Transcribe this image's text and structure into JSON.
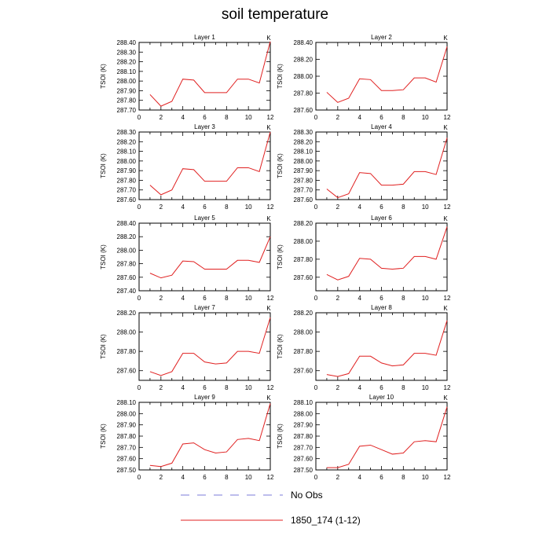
{
  "figure": {
    "title": "soil temperature",
    "ylabel": "TSOI  (K)",
    "units_tag": "K",
    "legend": [
      {
        "label": "No Obs",
        "style": "dashed",
        "color": "#7b7bd9"
      },
      {
        "label": "1850_174 (1-12)",
        "style": "solid",
        "color": "#e02020"
      }
    ],
    "line_color": "#e02020"
  },
  "chart_data": [
    {
      "type": "line",
      "title": "Layer 1",
      "xlabel": "",
      "ylabel": "TSOI  (K)",
      "xlim": [
        0,
        12
      ],
      "ylim": [
        287.7,
        288.4
      ],
      "xticks": [
        0,
        2,
        4,
        6,
        8,
        10,
        12
      ],
      "yticks": [
        "287.70",
        "287.80",
        "287.90",
        "288.00",
        "288.10",
        "288.20",
        "288.30",
        "288.40"
      ],
      "x": [
        1,
        2,
        3,
        4,
        5,
        6,
        7,
        8,
        9,
        10,
        11,
        12
      ],
      "series": [
        {
          "name": "1850_174 (1-12)",
          "values": [
            287.86,
            287.74,
            287.79,
            288.02,
            288.01,
            287.88,
            287.88,
            287.88,
            288.02,
            288.02,
            287.98,
            288.41
          ]
        }
      ]
    },
    {
      "type": "line",
      "title": "Layer 2",
      "xlabel": "",
      "ylabel": "TSOI  (K)",
      "xlim": [
        0,
        12
      ],
      "ylim": [
        287.6,
        288.4
      ],
      "xticks": [
        0,
        2,
        4,
        6,
        8,
        10,
        12
      ],
      "yticks": [
        "287.60",
        "287.80",
        "288.00",
        "288.20",
        "288.40"
      ],
      "x": [
        1,
        2,
        3,
        4,
        5,
        6,
        7,
        8,
        9,
        10,
        11,
        12
      ],
      "series": [
        {
          "name": "1850_174 (1-12)",
          "values": [
            287.81,
            287.69,
            287.74,
            287.97,
            287.96,
            287.83,
            287.83,
            287.84,
            287.98,
            287.98,
            287.93,
            288.35
          ]
        }
      ]
    },
    {
      "type": "line",
      "title": "Layer 3",
      "xlabel": "",
      "ylabel": "TSOI  (K)",
      "xlim": [
        0,
        12
      ],
      "ylim": [
        287.6,
        288.3
      ],
      "xticks": [
        0,
        2,
        4,
        6,
        8,
        10,
        12
      ],
      "yticks": [
        "287.60",
        "287.70",
        "287.80",
        "287.90",
        "288.00",
        "288.10",
        "288.20",
        "288.30"
      ],
      "x": [
        1,
        2,
        3,
        4,
        5,
        6,
        7,
        8,
        9,
        10,
        11,
        12
      ],
      "series": [
        {
          "name": "1850_174 (1-12)",
          "values": [
            287.75,
            287.65,
            287.7,
            287.92,
            287.91,
            287.79,
            287.79,
            287.79,
            287.93,
            287.93,
            287.89,
            288.3
          ]
        }
      ]
    },
    {
      "type": "line",
      "title": "Layer 4",
      "xlabel": "",
      "ylabel": "TSOI  (K)",
      "xlim": [
        0,
        12
      ],
      "ylim": [
        287.6,
        288.3
      ],
      "xticks": [
        0,
        2,
        4,
        6,
        8,
        10,
        12
      ],
      "yticks": [
        "287.60",
        "287.70",
        "287.80",
        "287.90",
        "288.00",
        "288.10",
        "288.20",
        "288.30"
      ],
      "x": [
        1,
        2,
        3,
        4,
        5,
        6,
        7,
        8,
        9,
        10,
        11,
        12
      ],
      "series": [
        {
          "name": "1850_174 (1-12)",
          "values": [
            287.71,
            287.62,
            287.66,
            287.88,
            287.87,
            287.75,
            287.75,
            287.76,
            287.89,
            287.89,
            287.86,
            288.24
          ]
        }
      ]
    },
    {
      "type": "line",
      "title": "Layer 5",
      "xlabel": "",
      "ylabel": "TSOI  (K)",
      "xlim": [
        0,
        12
      ],
      "ylim": [
        287.4,
        288.4
      ],
      "xticks": [
        0,
        2,
        4,
        6,
        8,
        10,
        12
      ],
      "yticks": [
        "287.40",
        "287.60",
        "287.80",
        "288.00",
        "288.20",
        "288.40"
      ],
      "x": [
        1,
        2,
        3,
        4,
        5,
        6,
        7,
        8,
        9,
        10,
        11,
        12
      ],
      "series": [
        {
          "name": "1850_174 (1-12)",
          "values": [
            287.66,
            287.59,
            287.63,
            287.84,
            287.83,
            287.72,
            287.72,
            287.72,
            287.85,
            287.85,
            287.82,
            288.2
          ]
        }
      ]
    },
    {
      "type": "line",
      "title": "Layer 6",
      "xlabel": "",
      "ylabel": "TSOI  (K)",
      "xlim": [
        0,
        12
      ],
      "ylim": [
        287.45,
        288.2
      ],
      "xticks": [
        0,
        2,
        4,
        6,
        8,
        10,
        12
      ],
      "yticks": [
        "287.60",
        "287.80",
        "288.00",
        "288.20"
      ],
      "x": [
        1,
        2,
        3,
        4,
        5,
        6,
        7,
        8,
        9,
        10,
        11,
        12
      ],
      "series": [
        {
          "name": "1850_174 (1-12)",
          "values": [
            287.63,
            287.57,
            287.61,
            287.81,
            287.8,
            287.7,
            287.69,
            287.7,
            287.83,
            287.83,
            287.8,
            288.16
          ]
        }
      ]
    },
    {
      "type": "line",
      "title": "Layer 7",
      "xlabel": "",
      "ylabel": "TSOI  (K)",
      "xlim": [
        0,
        12
      ],
      "ylim": [
        287.5,
        288.2
      ],
      "xticks": [
        0,
        2,
        4,
        6,
        8,
        10,
        12
      ],
      "yticks": [
        "287.60",
        "287.80",
        "288.00",
        "288.20"
      ],
      "x": [
        1,
        2,
        3,
        4,
        5,
        6,
        7,
        8,
        9,
        10,
        11,
        12
      ],
      "series": [
        {
          "name": "1850_174 (1-12)",
          "values": [
            287.59,
            287.55,
            287.59,
            287.78,
            287.78,
            287.69,
            287.67,
            287.68,
            287.8,
            287.8,
            287.78,
            288.15
          ]
        }
      ]
    },
    {
      "type": "line",
      "title": "Layer 8",
      "xlabel": "",
      "ylabel": "TSOI  (K)",
      "xlim": [
        0,
        12
      ],
      "ylim": [
        287.5,
        288.2
      ],
      "xticks": [
        0,
        2,
        4,
        6,
        8,
        10,
        12
      ],
      "yticks": [
        "287.60",
        "287.80",
        "288.00",
        "288.20"
      ],
      "x": [
        1,
        2,
        3,
        4,
        5,
        6,
        7,
        8,
        9,
        10,
        11,
        12
      ],
      "series": [
        {
          "name": "1850_174 (1-12)",
          "values": [
            287.56,
            287.54,
            287.57,
            287.75,
            287.75,
            287.68,
            287.65,
            287.66,
            287.78,
            287.78,
            287.76,
            288.12
          ]
        }
      ]
    },
    {
      "type": "line",
      "title": "Layer 9",
      "xlabel": "",
      "ylabel": "TSOI  (K)",
      "xlim": [
        0,
        12
      ],
      "ylim": [
        287.5,
        288.1
      ],
      "xticks": [
        0,
        2,
        4,
        6,
        8,
        10,
        12
      ],
      "yticks": [
        "287.50",
        "287.60",
        "287.70",
        "287.80",
        "287.90",
        "288.00",
        "288.10"
      ],
      "x": [
        1,
        2,
        3,
        4,
        5,
        6,
        7,
        8,
        9,
        10,
        11,
        12
      ],
      "series": [
        {
          "name": "1850_174 (1-12)",
          "values": [
            287.54,
            287.53,
            287.56,
            287.73,
            287.74,
            287.68,
            287.65,
            287.66,
            287.77,
            287.78,
            287.76,
            288.09
          ]
        }
      ]
    },
    {
      "type": "line",
      "title": "Layer 10",
      "xlabel": "",
      "ylabel": "TSOI  (K)",
      "xlim": [
        0,
        12
      ],
      "ylim": [
        287.5,
        288.1
      ],
      "xticks": [
        0,
        2,
        4,
        6,
        8,
        10,
        12
      ],
      "yticks": [
        "287.50",
        "287.60",
        "287.70",
        "287.80",
        "287.90",
        "288.00",
        "288.10"
      ],
      "x": [
        1,
        2,
        3,
        4,
        5,
        6,
        7,
        8,
        9,
        10,
        11,
        12
      ],
      "series": [
        {
          "name": "1850_174 (1-12)",
          "values": [
            287.52,
            287.52,
            287.55,
            287.71,
            287.72,
            287.68,
            287.64,
            287.65,
            287.75,
            287.76,
            287.75,
            288.06
          ]
        }
      ]
    }
  ]
}
